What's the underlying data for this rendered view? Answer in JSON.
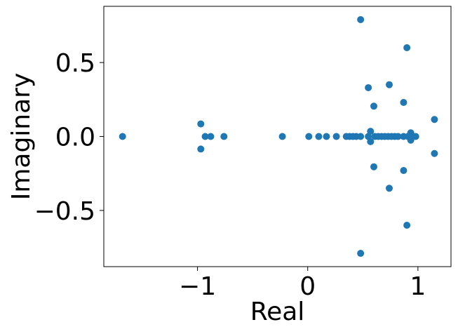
{
  "chart_data": {
    "type": "scatter",
    "title": "",
    "xlabel": "Real",
    "ylabel": "Imaginary",
    "xlim": [
      -1.85,
      1.3
    ],
    "ylim": [
      -0.88,
      0.88
    ],
    "x_ticks": [
      {
        "value": -1,
        "label": "−1"
      },
      {
        "value": 0,
        "label": "0"
      },
      {
        "value": 1,
        "label": "1"
      }
    ],
    "y_ticks": [
      {
        "value": 0.5,
        "label": "0.5"
      },
      {
        "value": 0.0,
        "label": "0.0"
      },
      {
        "value": -0.5,
        "label": "−0.5"
      }
    ],
    "grid": false,
    "legend": "none",
    "marker_color": "#1f77b4",
    "series": [
      {
        "points": [
          {
            "x": -1.68,
            "y": 0.0
          },
          {
            "x": -0.97,
            "y": 0.085
          },
          {
            "x": -0.97,
            "y": -0.085
          },
          {
            "x": -0.93,
            "y": 0.0
          },
          {
            "x": -0.88,
            "y": 0.0
          },
          {
            "x": -0.76,
            "y": 0.0
          },
          {
            "x": -0.23,
            "y": 0.0
          },
          {
            "x": 0.01,
            "y": 0.0
          },
          {
            "x": 0.1,
            "y": 0.0
          },
          {
            "x": 0.17,
            "y": 0.0
          },
          {
            "x": 0.26,
            "y": 0.0
          },
          {
            "x": 0.35,
            "y": 0.0
          },
          {
            "x": 0.38,
            "y": 0.0
          },
          {
            "x": 0.41,
            "y": 0.0
          },
          {
            "x": 0.44,
            "y": 0.0
          },
          {
            "x": 0.48,
            "y": 0.0
          },
          {
            "x": 0.48,
            "y": 0.79
          },
          {
            "x": 0.48,
            "y": -0.79
          },
          {
            "x": 0.55,
            "y": 0.33
          },
          {
            "x": 0.55,
            "y": 0.0
          },
          {
            "x": 0.57,
            "y": 0.035
          },
          {
            "x": 0.57,
            "y": -0.035
          },
          {
            "x": 0.6,
            "y": 0.205
          },
          {
            "x": 0.6,
            "y": -0.205
          },
          {
            "x": 0.61,
            "y": 0.0
          },
          {
            "x": 0.64,
            "y": 0.0
          },
          {
            "x": 0.67,
            "y": 0.0
          },
          {
            "x": 0.7,
            "y": 0.0
          },
          {
            "x": 0.73,
            "y": 0.0
          },
          {
            "x": 0.74,
            "y": 0.35
          },
          {
            "x": 0.74,
            "y": -0.35
          },
          {
            "x": 0.76,
            "y": 0.0
          },
          {
            "x": 0.79,
            "y": 0.0
          },
          {
            "x": 0.82,
            "y": 0.0
          },
          {
            "x": 0.87,
            "y": 0.23
          },
          {
            "x": 0.87,
            "y": -0.23
          },
          {
            "x": 0.87,
            "y": 0.0
          },
          {
            "x": 0.9,
            "y": 0.6
          },
          {
            "x": 0.9,
            "y": -0.6
          },
          {
            "x": 0.91,
            "y": 0.0
          },
          {
            "x": 0.935,
            "y": 0.025
          },
          {
            "x": 0.935,
            "y": -0.025
          },
          {
            "x": 0.95,
            "y": 0.0
          },
          {
            "x": 0.98,
            "y": 0.0
          },
          {
            "x": 1.15,
            "y": 0.115
          },
          {
            "x": 1.15,
            "y": -0.115
          }
        ]
      }
    ]
  }
}
